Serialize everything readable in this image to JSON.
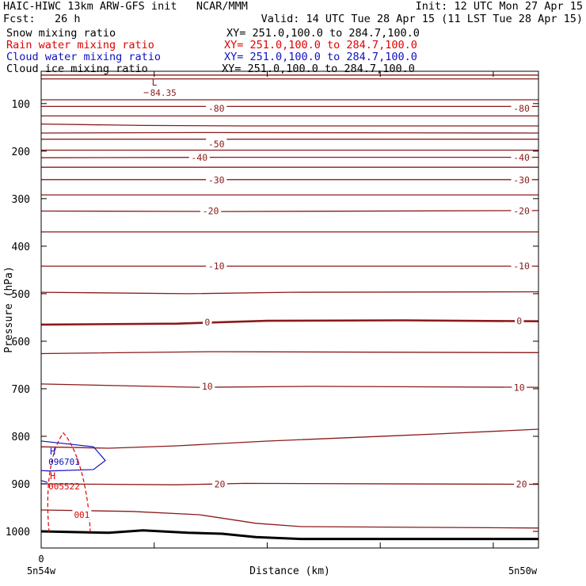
{
  "header": {
    "title_left": "HAIC-HIWC 13km ARW-GFS init   NCAR/MMM",
    "init": "Init: 12 UTC Mon 27 Apr 15",
    "fcst": "Fcst:   26 h",
    "valid": "Valid: 14 UTC Tue 28 Apr 15 (11 LST Tue 28 Apr 15)"
  },
  "fields": [
    {
      "name": "Snow mixing ratio",
      "xy": "XY= 251.0,100.0 to 284.7,100.0",
      "color": "#000000"
    },
    {
      "name": "Rain water mixing ratio",
      "xy": "XY= 251.0,100.0 to 284.7,100.0",
      "color": "#e00000"
    },
    {
      "name": "Cloud water mixing ratio",
      "xy": "XY= 251.0,100.0 to 284.7,100.0",
      "color": "#1010c0"
    },
    {
      "name": "Cloud ice mixing ratio",
      "xy": "XY= 251.0,100.0 to 284.7,100.0",
      "color": "#000000"
    }
  ],
  "chart_data": {
    "type": "contour cross-section",
    "ylabel": "Pressure (hPa)",
    "xlabel": "Distance (km)",
    "ylim": [
      1035,
      30
    ],
    "y_ticks": [
      100,
      200,
      300,
      400,
      500,
      600,
      700,
      800,
      900,
      1000
    ],
    "x_ticks": [
      0,
      1,
      2,
      3,
      4
    ],
    "x_tick_labels": {
      "left_value": "0",
      "left_name": "5n54w",
      "right_name": "5n50w"
    },
    "temperature_contours_color": "#8b1a1a",
    "temperature_labels": [
      {
        "text": "-80",
        "x": 1.55,
        "p": 110
      },
      {
        "text": "-80",
        "x": 4.25,
        "p": 110
      },
      {
        "text": "-50",
        "x": 1.55,
        "p": 185
      },
      {
        "text": "-40",
        "x": 1.4,
        "p": 214
      },
      {
        "text": "-40",
        "x": 4.25,
        "p": 214
      },
      {
        "text": "-30",
        "x": 1.55,
        "p": 261
      },
      {
        "text": "-30",
        "x": 4.25,
        "p": 261
      },
      {
        "text": "-20",
        "x": 1.5,
        "p": 326
      },
      {
        "text": "-20",
        "x": 4.25,
        "p": 326
      },
      {
        "text": "-10",
        "x": 1.55,
        "p": 442
      },
      {
        "text": "-10",
        "x": 4.25,
        "p": 442
      },
      {
        "text": "0",
        "x": 1.47,
        "p": 560
      },
      {
        "text": "0",
        "x": 4.23,
        "p": 558
      },
      {
        "text": "10",
        "x": 1.47,
        "p": 695
      },
      {
        "text": "10",
        "x": 4.23,
        "p": 698
      },
      {
        "text": "20",
        "x": 1.58,
        "p": 901
      },
      {
        "text": "20",
        "x": 4.25,
        "p": 901
      }
    ],
    "extrema": [
      {
        "mark": "L",
        "value": "84.35",
        "x": 0.95,
        "p": 62,
        "color": "#8b1a1a"
      },
      {
        "mark": "H",
        "value": "096701",
        "x": 0.05,
        "p": 838,
        "color": "#1010c0"
      },
      {
        "mark": "H",
        "value": "005522",
        "x": 0.05,
        "p": 890,
        "color": "#e00000"
      }
    ],
    "rain_contour_label": {
      "text": "001",
      "x": 0.36,
      "p": 965
    },
    "surface_line": "thick black"
  }
}
